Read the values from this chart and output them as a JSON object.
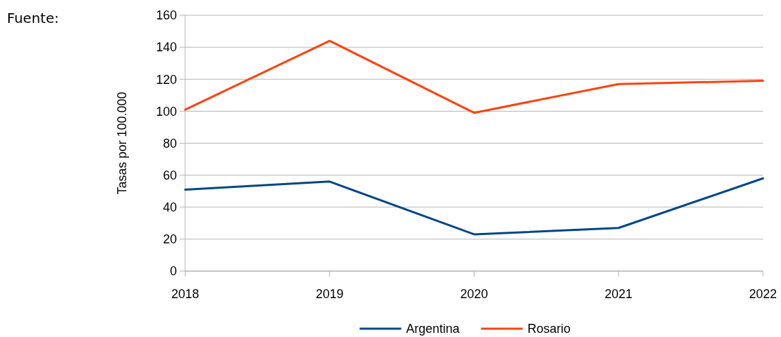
{
  "chart_data": {
    "type": "line",
    "ylabel": "Tasas por 100.000",
    "annotations": [
      "Fuente:"
    ],
    "x": [
      2018,
      2019,
      2020,
      2021,
      2022
    ],
    "xlim": [
      2018,
      2022
    ],
    "xticks": [
      2018,
      2019,
      2020,
      2021,
      2022
    ],
    "ylim": [
      0,
      160
    ],
    "yticks": [
      0,
      20,
      40,
      60,
      80,
      100,
      120,
      140,
      160
    ],
    "grid": "y",
    "legend": "bottom",
    "marker": "none",
    "line_style": "solid",
    "series": [
      {
        "name": "Argentina",
        "color": "#004586",
        "values": [
          51,
          56,
          23,
          27,
          58
        ]
      },
      {
        "name": "Rosario",
        "color": "#ff420e",
        "values": [
          101,
          144,
          99,
          117,
          119
        ]
      }
    ]
  }
}
